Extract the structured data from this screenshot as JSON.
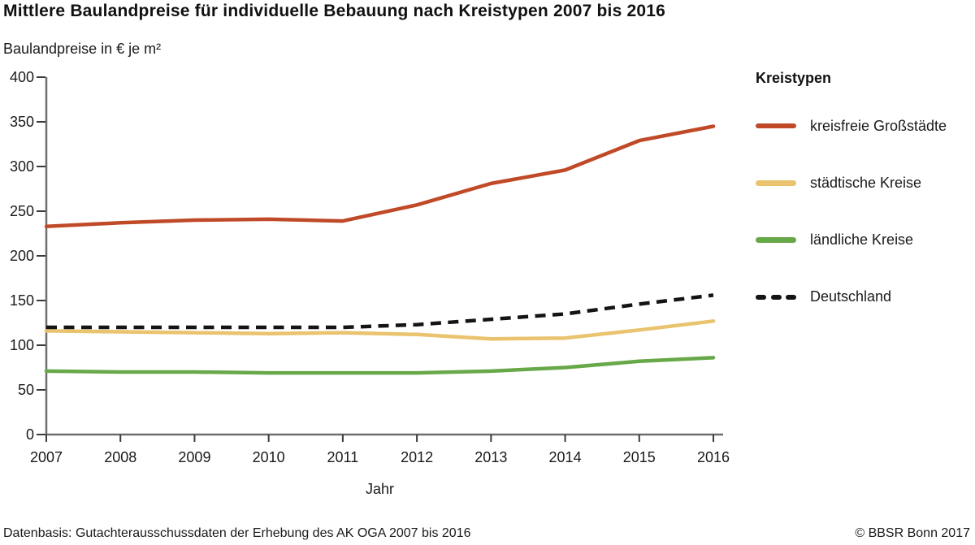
{
  "title": "Mittlere Baulandpreise für individuelle Bebauung nach Kreistypen 2007 bis 2016",
  "y_axis_label": "Baulandpreise in € je m²",
  "legend": {
    "title": "Kreistypen"
  },
  "footer": {
    "source": "Datenbasis: Gutachterausschussdaten der Erhebung des AK OGA 2007 bis 2016",
    "copyright": "© BBSR Bonn 2017"
  },
  "chart_data": {
    "type": "line",
    "title": "Mittlere Baulandpreise für individuelle Bebauung nach Kreistypen 2007 bis 2016",
    "xlabel": "Jahr",
    "ylabel": "Baulandpreise in € je m²",
    "x": [
      2007,
      2008,
      2009,
      2010,
      2011,
      2012,
      2013,
      2014,
      2015,
      2016
    ],
    "series": [
      {
        "name": "kreisfreie Großstädte",
        "color": "#c04a27",
        "style": "solid",
        "values": [
          233,
          237,
          240,
          241,
          239,
          257,
          281,
          296,
          329,
          345
        ]
      },
      {
        "name": "städtische Kreise",
        "color": "#e9c36d",
        "style": "solid",
        "values": [
          116,
          115,
          114,
          113,
          114,
          112,
          107,
          108,
          117,
          127
        ]
      },
      {
        "name": "ländliche Kreise",
        "color": "#67a848",
        "style": "solid",
        "values": [
          71,
          70,
          70,
          69,
          69,
          69,
          71,
          75,
          82,
          86
        ]
      },
      {
        "name": "Deutschland",
        "color": "#141414",
        "style": "dashed",
        "values": [
          120,
          120,
          120,
          120,
          120,
          123,
          129,
          135,
          146,
          156
        ]
      }
    ],
    "ylim": [
      0,
      400
    ],
    "ytick_step": 50,
    "grid": false,
    "legend_position": "right",
    "axis_color": "#6e6e6e",
    "tick_color": "#3a3a3a"
  }
}
